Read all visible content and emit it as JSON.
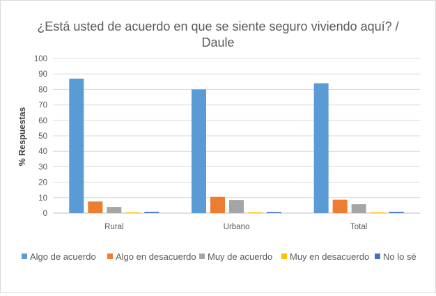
{
  "chart_data": {
    "type": "bar",
    "title_line1": "¿Está usted de acuerdo en que se siente seguro viviendo aquí? /",
    "title_line2": "Daule",
    "xlabel": "",
    "ylabel": "% Respuestas",
    "ylim": [
      0,
      100
    ],
    "yticks": [
      0,
      10,
      20,
      30,
      40,
      50,
      60,
      70,
      80,
      90,
      100
    ],
    "grid": true,
    "legend_position": "bottom",
    "categories": [
      "Rural",
      "Urbano",
      "Total"
    ],
    "series": [
      {
        "name": "Algo de acuerdo",
        "color": "#5b9bd5",
        "values": [
          87,
          80,
          84
        ]
      },
      {
        "name": "Algo en desacuerdo",
        "color": "#ed7d31",
        "values": [
          7.5,
          10.5,
          8.7
        ]
      },
      {
        "name": "Muy de acuerdo",
        "color": "#a5a5a5",
        "values": [
          4,
          8.5,
          5.8
        ]
      },
      {
        "name": "Muy en desacuerdo",
        "color": "#ffc000",
        "values": [
          0.5,
          0.5,
          0.5
        ]
      },
      {
        "name": "No lo sé",
        "color": "#4472c4",
        "values": [
          0.8,
          0.7,
          0.8
        ]
      }
    ]
  }
}
